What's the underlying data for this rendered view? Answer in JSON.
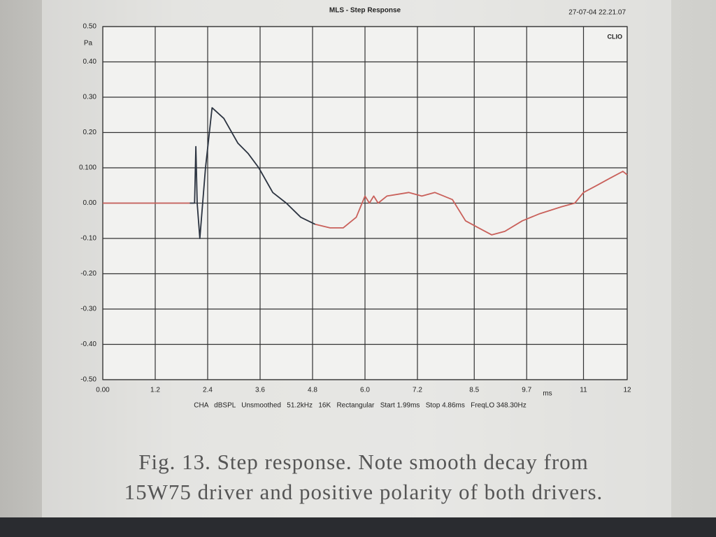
{
  "chart_data": {
    "type": "line",
    "title": "MLS - Step Response",
    "timestamp": "27-07-04 22.21.07",
    "brand": "CLIO",
    "ylabel": "Pa",
    "xlabel": "ms",
    "footer": "CHA   dBSPL   Unsmoothed   51.2kHz   16K   Rectangular   Start 1.99ms   Stop 4.86ms   FreqLO 348.30Hz",
    "caption": [
      "Fig. 13. Step response. Note smooth decay from",
      "15W75 driver and positive polarity of both drivers."
    ],
    "xlim": [
      0,
      12
    ],
    "ylim": [
      -0.5,
      0.5
    ],
    "xticks": [
      {
        "value": 0,
        "label": "0.00"
      },
      1.2,
      2.4,
      3.6,
      4.8,
      {
        "value": 6,
        "label": "6.0"
      },
      7.2,
      8.5,
      9.7,
      11,
      12
    ],
    "yticks": [
      {
        "value": 0.5,
        "label": "0.50"
      },
      {
        "value": 0.4,
        "label": "0.40"
      },
      {
        "value": 0.3,
        "label": "0.30"
      },
      {
        "value": 0.2,
        "label": "0.20"
      },
      {
        "value": 0.1,
        "label": "0.100"
      },
      {
        "value": 0,
        "label": "0.00"
      },
      {
        "value": -0.1,
        "label": "-0.10"
      },
      {
        "value": -0.2,
        "label": "-0.20"
      },
      {
        "value": -0.3,
        "label": "-0.30"
      },
      {
        "value": -0.4,
        "label": "-0.40"
      },
      {
        "value": -0.5,
        "label": "-0.50"
      }
    ],
    "grid": true,
    "x": [
      0,
      1.0,
      1.99,
      2.1,
      2.13,
      2.16,
      2.22,
      2.35,
      2.5,
      2.77,
      3.09,
      3.33,
      3.57,
      3.89,
      4.2,
      4.53,
      4.86,
      5.2,
      5.5,
      5.8,
      6.0,
      6.1,
      6.2,
      6.3,
      6.5,
      7.0,
      7.3,
      7.6,
      8.0,
      8.3,
      8.6,
      8.9,
      9.2,
      9.6,
      10.0,
      10.5,
      10.8,
      11.0,
      11.3,
      11.6,
      11.9,
      12.0
    ],
    "series": [
      {
        "color": "#2b3340",
        "values": [
          null,
          null,
          0,
          0,
          0.16,
          0.0,
          -0.1,
          0.1,
          0.27,
          0.24,
          0.17,
          0.14,
          0.1,
          0.03,
          0,
          -0.04,
          -0.06,
          null,
          null,
          null,
          null,
          null,
          null,
          null,
          null,
          null,
          null,
          null,
          null,
          null,
          null,
          null,
          null,
          null,
          null,
          null,
          null,
          null,
          null,
          null,
          null,
          null
        ]
      },
      {
        "color": "#c9605a",
        "values": [
          0,
          0,
          0,
          null,
          null,
          null,
          null,
          null,
          null,
          null,
          null,
          null,
          null,
          null,
          null,
          null,
          -0.06,
          -0.07,
          -0.07,
          -0.04,
          0.02,
          0.0,
          0.02,
          0.0,
          0.02,
          0.03,
          0.02,
          0.03,
          0.01,
          -0.05,
          -0.07,
          -0.09,
          -0.08,
          -0.05,
          -0.03,
          -0.01,
          0.0,
          0.03,
          0.05,
          0.07,
          0.09,
          0.08
        ]
      }
    ]
  }
}
